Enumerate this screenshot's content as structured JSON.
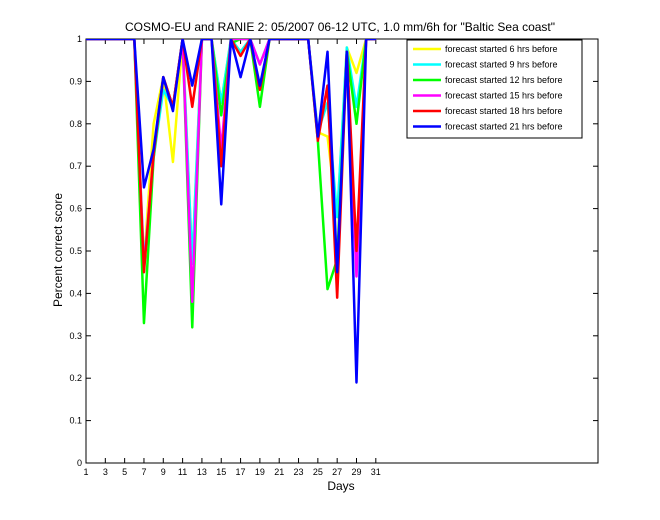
{
  "chart_data": {
    "type": "line",
    "title": "COSMO-EU and RANIE 2: 05/2007 06-12 UTC, 1.0 mm/6h for \"Baltic Sea coast\"",
    "xlabel": "Days",
    "ylabel": "Percent correct score",
    "xlim": [
      1,
      54
    ],
    "ylim": [
      0,
      1
    ],
    "xticks": [
      1,
      3,
      5,
      7,
      9,
      11,
      13,
      15,
      17,
      19,
      21,
      23,
      25,
      27,
      29,
      31
    ],
    "yticks": [
      0,
      0.1,
      0.2,
      0.3,
      0.4,
      0.5,
      0.6,
      0.7,
      0.8,
      0.9,
      1
    ],
    "grid": false,
    "legend_position": "top-right",
    "x": [
      1,
      2,
      3,
      4,
      5,
      6,
      7,
      8,
      9,
      10,
      11,
      12,
      13,
      14,
      15,
      16,
      17,
      18,
      19,
      20,
      21,
      22,
      23,
      24,
      25,
      26,
      27,
      28,
      29,
      30,
      31
    ],
    "series": [
      {
        "name": "forecast started 6 hrs before",
        "color": "#ffff00",
        "values": [
          1,
          1,
          1,
          1,
          1,
          1,
          0.47,
          0.8,
          0.91,
          0.71,
          1,
          0.47,
          1,
          1,
          0.85,
          1,
          0.97,
          1,
          0.94,
          1,
          1,
          1,
          1,
          1,
          0.78,
          0.77,
          0.58,
          0.98,
          0.92,
          1,
          1
        ]
      },
      {
        "name": "forecast started 9 hrs before",
        "color": "#00ffff",
        "values": [
          1,
          1,
          1,
          1,
          1,
          1,
          0.47,
          0.72,
          0.88,
          0.84,
          1,
          0.47,
          1,
          1,
          0.85,
          1,
          0.97,
          1,
          0.94,
          1,
          1,
          1,
          1,
          1,
          0.78,
          0.85,
          0.58,
          0.98,
          0.84,
          1,
          1
        ]
      },
      {
        "name": "forecast started 12 hrs before",
        "color": "#00ff00",
        "values": [
          1,
          1,
          1,
          1,
          1,
          1,
          0.33,
          0.72,
          0.91,
          0.84,
          1,
          0.32,
          1,
          1,
          0.82,
          0.99,
          1,
          1,
          0.84,
          1,
          1,
          1,
          1,
          1,
          0.76,
          0.41,
          0.48,
          0.97,
          0.8,
          1,
          1
        ]
      },
      {
        "name": "forecast started 15 hrs before",
        "color": "#ff00ff",
        "values": [
          1,
          1,
          1,
          1,
          1,
          1,
          0.46,
          0.73,
          0.91,
          0.84,
          1,
          0.38,
          1,
          1,
          0.74,
          1,
          1,
          1,
          0.94,
          1,
          1,
          1,
          1,
          1,
          0.77,
          0.89,
          0.44,
          0.97,
          0.44,
          1,
          1
        ]
      },
      {
        "name": "forecast started 18 hrs before",
        "color": "#ff0000",
        "values": [
          1,
          1,
          1,
          1,
          1,
          1,
          0.45,
          0.73,
          0.91,
          0.84,
          1,
          0.84,
          1,
          1,
          0.7,
          1,
          0.96,
          1,
          0.88,
          1,
          1,
          1,
          1,
          1,
          0.76,
          0.89,
          0.39,
          0.97,
          0.5,
          1,
          1
        ]
      },
      {
        "name": "forecast started 21 hrs before",
        "color": "#0000ff",
        "values": [
          1,
          1,
          1,
          1,
          1,
          1,
          0.65,
          0.74,
          0.91,
          0.83,
          1,
          0.89,
          1,
          1,
          0.61,
          1,
          0.91,
          1,
          0.89,
          1,
          1,
          1,
          1,
          1,
          0.77,
          0.97,
          0.45,
          0.97,
          0.19,
          1,
          1
        ]
      }
    ]
  }
}
